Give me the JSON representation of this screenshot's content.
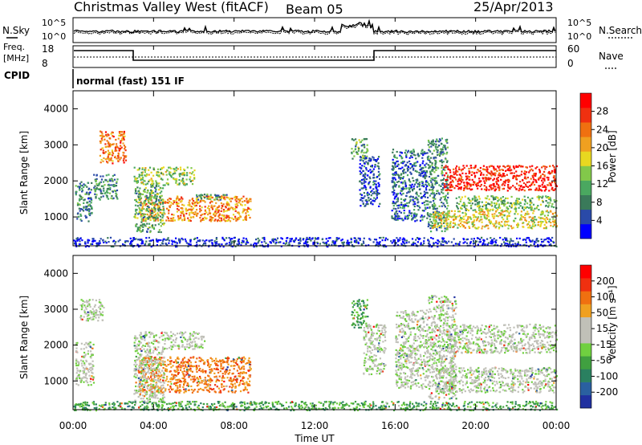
{
  "header": {
    "station": "Christmas Valley West (fitACF)",
    "beam": "Beam 05",
    "date": "25/Apr/2013"
  },
  "status_panels": {
    "nsky_label": "N.Sky",
    "nsky_ticks": [
      "10^5",
      "10^0"
    ],
    "nsearch_label": "N.Search",
    "nsearch_ticks": [
      "10^5",
      "10^0"
    ],
    "freq_label_1": "Freq.",
    "freq_label_2": "[MHz]",
    "freq_ticks": [
      "18",
      "8"
    ],
    "nave_label": "Nave",
    "nave_ticks": [
      "60",
      "0"
    ],
    "cpid_label": "CPID",
    "cpid_text": "normal (fast) 151 IF"
  },
  "chart_data": [
    {
      "type": "heatmap",
      "name": "power",
      "ylabel": "Slant Range [km]",
      "yticks": [
        "4000",
        "3000",
        "2000",
        "1000"
      ],
      "ytick_values": [
        4000,
        3000,
        2000,
        1000
      ],
      "ylim": [
        200,
        4500
      ],
      "xlim": [
        0,
        24
      ],
      "colorbar": {
        "label": "Power [dB]",
        "ticks": [
          "28",
          "24",
          "20",
          "16",
          "12",
          "8",
          "4"
        ],
        "colors": [
          "#0000ff",
          "#2a4aa8",
          "#3a7a5a",
          "#4aa860",
          "#82c84a",
          "#e8d820",
          "#f0a020",
          "#f07010",
          "#f03010",
          "#ff0000"
        ]
      },
      "regions": [
        {
          "t0": 0.1,
          "t1": 0.9,
          "r0": 900,
          "r1": 2000,
          "level": 0.25
        },
        {
          "t0": 1.3,
          "t1": 2.6,
          "r0": 2500,
          "r1": 3400,
          "level": 0.75
        },
        {
          "t0": 1.0,
          "t1": 2.2,
          "r0": 1500,
          "r1": 2200,
          "level": 0.3
        },
        {
          "t0": 3.0,
          "t1": 6.0,
          "r0": 1900,
          "r1": 2400,
          "level": 0.45
        },
        {
          "t0": 3.3,
          "t1": 8.8,
          "r0": 900,
          "r1": 1600,
          "level": 0.7
        },
        {
          "t0": 3.0,
          "t1": 4.5,
          "r0": 600,
          "r1": 1900,
          "level": 0.35
        },
        {
          "t0": 6.0,
          "t1": 7.6,
          "r0": 1500,
          "r1": 1650,
          "level": 0.3
        },
        {
          "t0": 13.8,
          "t1": 14.6,
          "r0": 2600,
          "r1": 3200,
          "level": 0.35
        },
        {
          "t0": 14.2,
          "t1": 15.2,
          "r0": 1300,
          "r1": 2700,
          "level": 0.15
        },
        {
          "t0": 15.8,
          "t1": 17.6,
          "r0": 900,
          "r1": 2900,
          "level": 0.2
        },
        {
          "t0": 17.6,
          "t1": 18.6,
          "r0": 600,
          "r1": 3200,
          "level": 0.3
        },
        {
          "t0": 18.4,
          "t1": 24.0,
          "r0": 1750,
          "r1": 2450,
          "level": 0.9
        },
        {
          "t0": 17.8,
          "t1": 24.0,
          "r0": 700,
          "r1": 1200,
          "level": 0.55
        },
        {
          "t0": 19.0,
          "t1": 24.0,
          "r0": 1200,
          "r1": 1600,
          "level": 0.4
        },
        {
          "t0": 0.0,
          "t1": 24.0,
          "r0": 200,
          "r1": 450,
          "level": 0.1
        }
      ]
    },
    {
      "type": "heatmap",
      "name": "velocity",
      "ylabel": "Slant Range [km]",
      "yticks": [
        "4000",
        "3000",
        "2000",
        "1000"
      ],
      "ytick_values": [
        4000,
        3000,
        2000,
        1000
      ],
      "ylim": [
        200,
        4500
      ],
      "xlim": [
        0,
        24
      ],
      "colorbar": {
        "label": "Velocity [m s⁻¹]",
        "ticks": [
          "200",
          "100",
          "50",
          "15",
          "-15",
          "-50",
          "-100",
          "-200"
        ],
        "colors": [
          "#2030a0",
          "#2a60a0",
          "#2a8060",
          "#40a040",
          "#70d040",
          "#c0c0b8",
          "#c0c0b8",
          "#f0a020",
          "#f07010",
          "#f03010",
          "#ff0000"
        ]
      },
      "regions": [
        {
          "t0": 0.1,
          "t1": 1.0,
          "r0": 900,
          "r1": 2100,
          "level": 0.5
        },
        {
          "t0": 0.3,
          "t1": 1.5,
          "r0": 2700,
          "r1": 3300,
          "level": 0.5
        },
        {
          "t0": 3.0,
          "t1": 6.5,
          "r0": 1900,
          "r1": 2400,
          "level": 0.5
        },
        {
          "t0": 3.2,
          "t1": 8.8,
          "r0": 700,
          "r1": 1700,
          "level": 0.75
        },
        {
          "t0": 3.0,
          "t1": 4.5,
          "r0": 400,
          "r1": 1900,
          "level": 0.5
        },
        {
          "t0": 13.8,
          "t1": 14.6,
          "r0": 2500,
          "r1": 3300,
          "level": 0.3
        },
        {
          "t0": 14.4,
          "t1": 15.5,
          "r0": 1200,
          "r1": 2600,
          "level": 0.5
        },
        {
          "t0": 16.0,
          "t1": 17.6,
          "r0": 800,
          "r1": 3000,
          "level": 0.5
        },
        {
          "t0": 17.6,
          "t1": 19.0,
          "r0": 500,
          "r1": 3400,
          "level": 0.5
        },
        {
          "t0": 18.5,
          "t1": 24.0,
          "r0": 1800,
          "r1": 2600,
          "level": 0.5
        },
        {
          "t0": 18.0,
          "t1": 24.0,
          "r0": 700,
          "r1": 1400,
          "level": 0.5
        },
        {
          "t0": 0.0,
          "t1": 24.0,
          "r0": 200,
          "r1": 450,
          "level": 0.32
        }
      ]
    }
  ],
  "x_axis": {
    "label": "Time UT",
    "ticks": [
      "00:00",
      "04:00",
      "08:00",
      "12:00",
      "16:00",
      "20:00",
      "00:00"
    ],
    "tick_hours": [
      0,
      4,
      8,
      12,
      16,
      20,
      24
    ]
  }
}
